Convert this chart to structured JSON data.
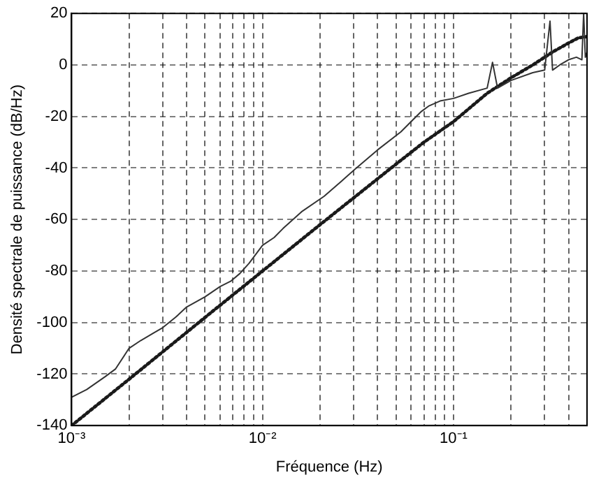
{
  "chart_data": {
    "type": "line",
    "xlabel": "Fréquence (Hz)",
    "ylabel": "Densité spectrale de puissance (dB/Hz)",
    "log": "x",
    "grid": true,
    "marker": "none",
    "xlim": [
      0.001,
      0.5
    ],
    "ylim": [
      -140,
      20
    ],
    "xticks": [
      {
        "value": 0.001,
        "label": "10⁻³"
      },
      {
        "value": 0.002,
        "label": null
      },
      {
        "value": 0.003,
        "label": null
      },
      {
        "value": 0.004,
        "label": null
      },
      {
        "value": 0.005,
        "label": null
      },
      {
        "value": 0.006,
        "label": null
      },
      {
        "value": 0.007,
        "label": null
      },
      {
        "value": 0.008,
        "label": null
      },
      {
        "value": 0.009,
        "label": null
      },
      {
        "value": 0.01,
        "label": "10⁻²"
      },
      {
        "value": 0.02,
        "label": null
      },
      {
        "value": 0.03,
        "label": null
      },
      {
        "value": 0.04,
        "label": null
      },
      {
        "value": 0.05,
        "label": null
      },
      {
        "value": 0.06,
        "label": null
      },
      {
        "value": 0.07,
        "label": null
      },
      {
        "value": 0.08,
        "label": null
      },
      {
        "value": 0.09,
        "label": null
      },
      {
        "value": 0.1,
        "label": "10⁻¹"
      },
      {
        "value": 0.2,
        "label": null
      },
      {
        "value": 0.3,
        "label": null
      },
      {
        "value": 0.4,
        "label": null
      }
    ],
    "yticks": [
      -140,
      -120,
      -100,
      -80,
      -60,
      -40,
      -20,
      0,
      20
    ],
    "series": [
      {
        "color": "#333333",
        "line_style": "solid",
        "x": [
          0.001,
          0.0012,
          0.0015,
          0.0017,
          0.002,
          0.0023,
          0.0027,
          0.003,
          0.0035,
          0.004,
          0.005,
          0.006,
          0.0068,
          0.0076,
          0.0085,
          0.01,
          0.0115,
          0.0128,
          0.016,
          0.021,
          0.026,
          0.031,
          0.04,
          0.053,
          0.06,
          0.068,
          0.074,
          0.085,
          0.1,
          0.12,
          0.15,
          0.16,
          0.17,
          0.2,
          0.26,
          0.3,
          0.32,
          0.33,
          0.36,
          0.4,
          0.44,
          0.47,
          0.48,
          0.49,
          0.5
        ],
        "values": [
          -129,
          -126,
          -121,
          -118,
          -110,
          -107,
          -104,
          -102,
          -98,
          -94,
          -90,
          -86,
          -84,
          -81,
          -77,
          -70,
          -67,
          -63.5,
          -57,
          -51,
          -45,
          -40,
          -33,
          -26,
          -22,
          -18,
          -16,
          -14,
          -13,
          -11,
          -9,
          1,
          -9,
          -6,
          -3,
          -2,
          17,
          -2,
          0,
          2,
          3,
          2,
          20,
          3,
          5
        ]
      },
      {
        "color": "#1a1a1a",
        "line_style": "dotted",
        "x": [
          0.001,
          0.002,
          0.005,
          0.01,
          0.02,
          0.05,
          0.07,
          0.1,
          0.15,
          0.2,
          0.26,
          0.33,
          0.4,
          0.45,
          0.5
        ],
        "values": [
          -140,
          -122,
          -98,
          -80,
          -62,
          -38.5,
          -30,
          -22,
          -11,
          -5,
          0,
          5,
          8.5,
          10.5,
          11
        ]
      }
    ]
  }
}
